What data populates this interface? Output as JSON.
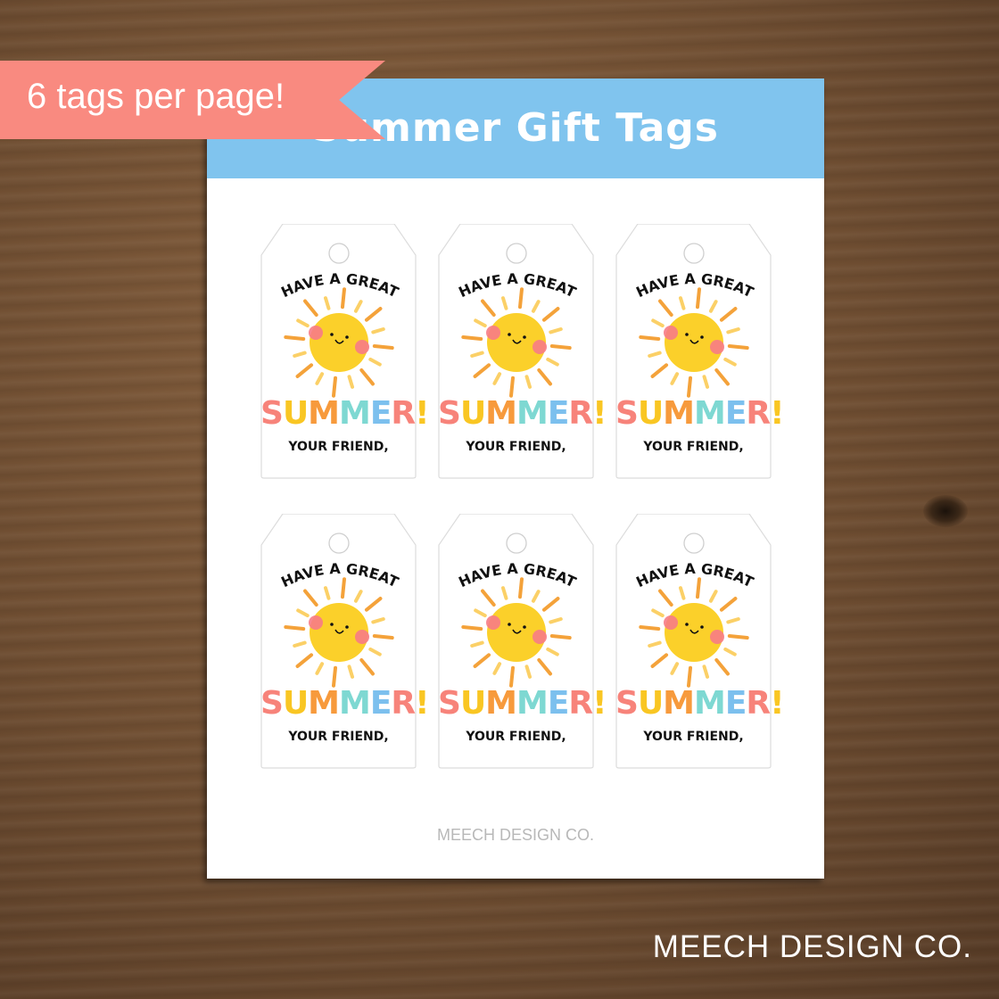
{
  "banner": {
    "label": "6 tags per page!",
    "color": "#f98a80"
  },
  "sheet": {
    "title": "Summer Gift Tags",
    "header_color": "#80c4ee",
    "footer": "MEECH DESIGN CO."
  },
  "tags": [
    {
      "top_text": "HAVE A GREAT",
      "main_text": "SUMMER!",
      "sign_off": "YOUR FRIEND,"
    },
    {
      "top_text": "HAVE A GREAT",
      "main_text": "SUMMER!",
      "sign_off": "YOUR FRIEND,"
    },
    {
      "top_text": "HAVE A GREAT",
      "main_text": "SUMMER!",
      "sign_off": "YOUR FRIEND,"
    },
    {
      "top_text": "HAVE A GREAT",
      "main_text": "SUMMER!",
      "sign_off": "YOUR FRIEND,"
    },
    {
      "top_text": "HAVE A GREAT",
      "main_text": "SUMMER!",
      "sign_off": "YOUR FRIEND,"
    },
    {
      "top_text": "HAVE A GREAT",
      "main_text": "SUMMER!",
      "sign_off": "YOUR FRIEND,"
    }
  ],
  "summer_letter_colors": [
    "#f7837a",
    "#f9c623",
    "#f79a3c",
    "#7ed8d2",
    "#7cc0ee",
    "#f7837a",
    "#f9c623"
  ],
  "sun_color": "#fbd02a",
  "brand": "MEECH DESIGN CO."
}
